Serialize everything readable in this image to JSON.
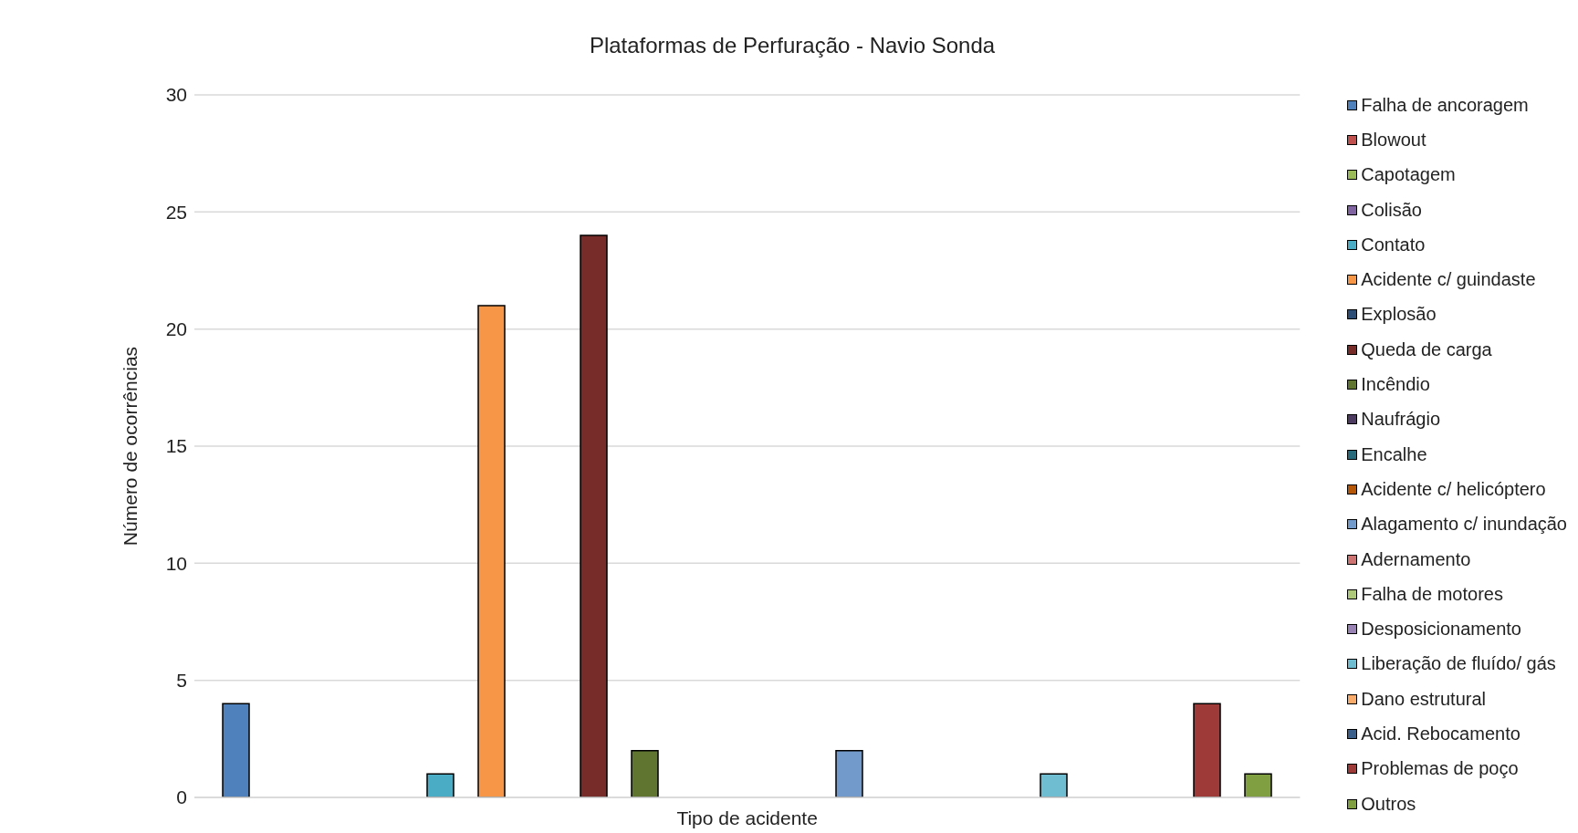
{
  "chart_data": {
    "type": "bar",
    "title": "Plataformas de Perfuração - Navio Sonda",
    "xlabel": "Tipo de acidente",
    "ylabel": "Número de ocorrências",
    "categories": [
      null
    ],
    "series": [
      {
        "name": "Falha de ancoragem",
        "color": "#4f81bd",
        "values": [
          4
        ]
      },
      {
        "name": "Blowout",
        "color": "#c0504d",
        "values": [
          0
        ]
      },
      {
        "name": "Capotagem",
        "color": "#9bbb59",
        "values": [
          0
        ]
      },
      {
        "name": "Colisão",
        "color": "#8064a2",
        "values": [
          0
        ]
      },
      {
        "name": "Contato",
        "color": "#4bacc6",
        "values": [
          1
        ]
      },
      {
        "name": "Acidente c/ guindaste",
        "color": "#f79646",
        "values": [
          21
        ]
      },
      {
        "name": "Explosão",
        "color": "#2c4d75",
        "values": [
          0
        ]
      },
      {
        "name": "Queda de carga",
        "color": "#772c2a",
        "values": [
          24
        ]
      },
      {
        "name": "Incêndio",
        "color": "#5f7530",
        "values": [
          2
        ]
      },
      {
        "name": "Naufrágio",
        "color": "#4d3b62",
        "values": [
          0
        ]
      },
      {
        "name": "Encalhe",
        "color": "#276a7c",
        "values": [
          0
        ]
      },
      {
        "name": "Acidente c/ helicóptero",
        "color": "#b65708",
        "values": [
          0
        ]
      },
      {
        "name": "Alagamento c/ inundação",
        "color": "#729aca",
        "values": [
          2
        ]
      },
      {
        "name": "Adernamento",
        "color": "#cd7371",
        "values": [
          0
        ]
      },
      {
        "name": "Falha de motores",
        "color": "#afc97a",
        "values": [
          0
        ]
      },
      {
        "name": "Desposicionamento",
        "color": "#9983b5",
        "values": [
          0
        ]
      },
      {
        "name": "Liberação de fluído/ gás",
        "color": "#6fbdd1",
        "values": [
          1
        ]
      },
      {
        "name": "Dano estrutural",
        "color": "#f9ab6b",
        "values": [
          0
        ]
      },
      {
        "name": "Acid. Rebocamento",
        "color": "#3a5f8b",
        "values": [
          0
        ]
      },
      {
        "name": "Problemas de poço",
        "color": "#9e3a38",
        "values": [
          4
        ]
      },
      {
        "name": "Outros",
        "color": "#7f9f40",
        "values": [
          1
        ]
      }
    ],
    "ylim": [
      0,
      30
    ],
    "yticks": [
      0,
      5,
      10,
      15,
      20,
      25,
      30
    ],
    "grid": "y",
    "legend": "right"
  }
}
